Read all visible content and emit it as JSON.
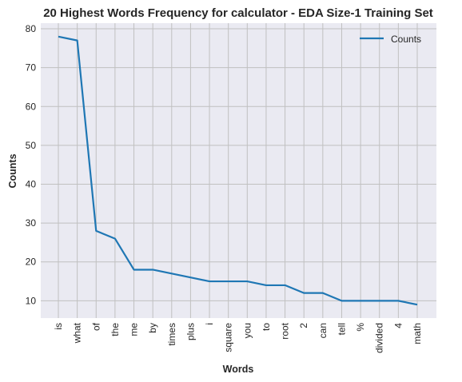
{
  "chart_data": {
    "type": "line",
    "title": "20 Highest Words Frequency for calculator - EDA Size-1 Training Set",
    "xlabel": "Words",
    "ylabel": "Counts",
    "categories": [
      "is",
      "what",
      "of",
      "the",
      "me",
      "by",
      "times",
      "plus",
      "i",
      "square",
      "you",
      "to",
      "root",
      "2",
      "can",
      "tell",
      "%",
      "divided",
      "4",
      "math"
    ],
    "series": [
      {
        "name": "Counts",
        "values": [
          78,
          77,
          28,
          26,
          18,
          18,
          17,
          16,
          15,
          15,
          15,
          14,
          14,
          12,
          12,
          10,
          10,
          10,
          10,
          9
        ]
      }
    ],
    "ylim": [
      5.55,
      81.45
    ],
    "yticks": [
      10,
      20,
      30,
      40,
      50,
      60,
      70,
      80
    ],
    "grid": true,
    "legend_position": "top-right",
    "colors": {
      "line": "#1f77b4",
      "plot_bg": "#eaeaf2",
      "grid": "#c0c0c0"
    }
  }
}
